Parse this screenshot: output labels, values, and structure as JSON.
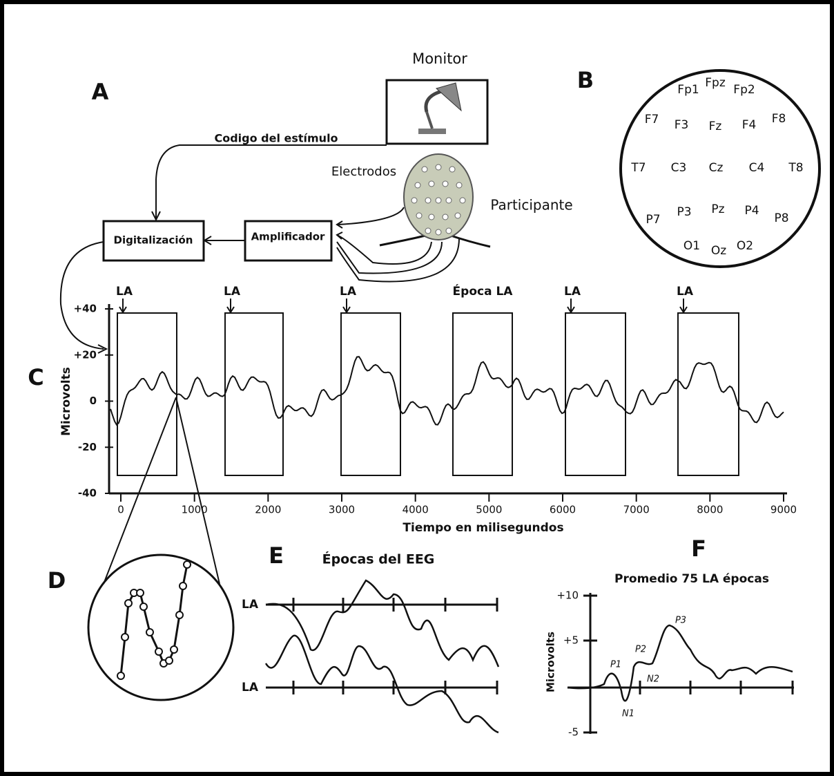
{
  "panels": [
    "A",
    "B",
    "C",
    "D",
    "E",
    "F"
  ],
  "setup": {
    "monitor": "Monitor",
    "stimulus_code": "Codigo del estímulo",
    "electrodes": "Electrodos",
    "participant": "Participante",
    "digitization": "Digitalización",
    "amplifier": "Amplificador"
  },
  "electrodes": [
    "Fp1",
    "Fpz",
    "Fp2",
    "F7",
    "F3",
    "Fz",
    "F4",
    "F8",
    "T7",
    "C3",
    "Cz",
    "C4",
    "T8",
    "P7",
    "P3",
    "Pz",
    "P4",
    "P8",
    "O1",
    "Oz",
    "O2"
  ],
  "eeg": {
    "y_label": "Microvolts",
    "x_label": "Tiempo en milisegundos",
    "yticks": [
      "+40",
      "+20",
      "0",
      "-20",
      "-40"
    ],
    "xticks": [
      0,
      1000,
      2000,
      3000,
      4000,
      5000,
      6000,
      7000,
      8000,
      9000
    ],
    "markers": [
      "LA",
      "LA",
      "LA",
      "Época LA",
      "LA",
      "LA"
    ]
  },
  "epochs": {
    "title": "Épocas del EEG",
    "labels": [
      "LA",
      "LA"
    ]
  },
  "average": {
    "title": "Promedio 75 LA épocas",
    "y_label": "Microvolts",
    "yticks": [
      "+10",
      "+5",
      "-5"
    ],
    "components": [
      "P1",
      "P2",
      "N1",
      "N2",
      "P3"
    ]
  }
}
